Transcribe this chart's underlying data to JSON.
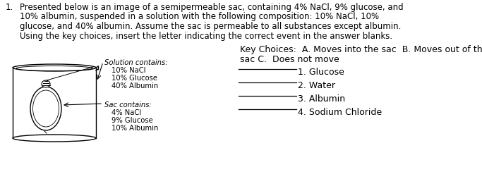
{
  "title_number": "1.",
  "title_line1": "Presented below is an image of a semipermeable sac, containing 4% NaCl, 9% glucose, and",
  "title_line2": "10% albumin, suspended in a solution with the following composition: 10% NaCl, 10%",
  "title_line3": "glucose, and 40% albumin. Assume the sac is permeable to all substances except albumin.",
  "title_line4": "Using the key choices, insert the letter indicating the correct event in the answer blanks.",
  "key_choices_line1": "Key Choices:  A. Moves into the sac  B. Moves out of the",
  "key_choices_line2": "sac C.  Does not move",
  "solution_label": "Solution contains:",
  "solution_contents": [
    "10% NaCl",
    "10% Glucose",
    "40% Albumin"
  ],
  "sac_label": "Sac contains:",
  "sac_contents": [
    "4% NaCl",
    "9% Glucose",
    "10% Albumin"
  ],
  "q_labels": [
    "1. Glucose",
    "2. Water",
    "3. Albumin",
    "4. Sodium Chloride"
  ],
  "bg_color": "#ffffff",
  "text_color": "#000000",
  "title_fontsize": 8.5,
  "label_fontsize": 7.2,
  "question_fontsize": 9.0,
  "key_fontsize": 9.0
}
